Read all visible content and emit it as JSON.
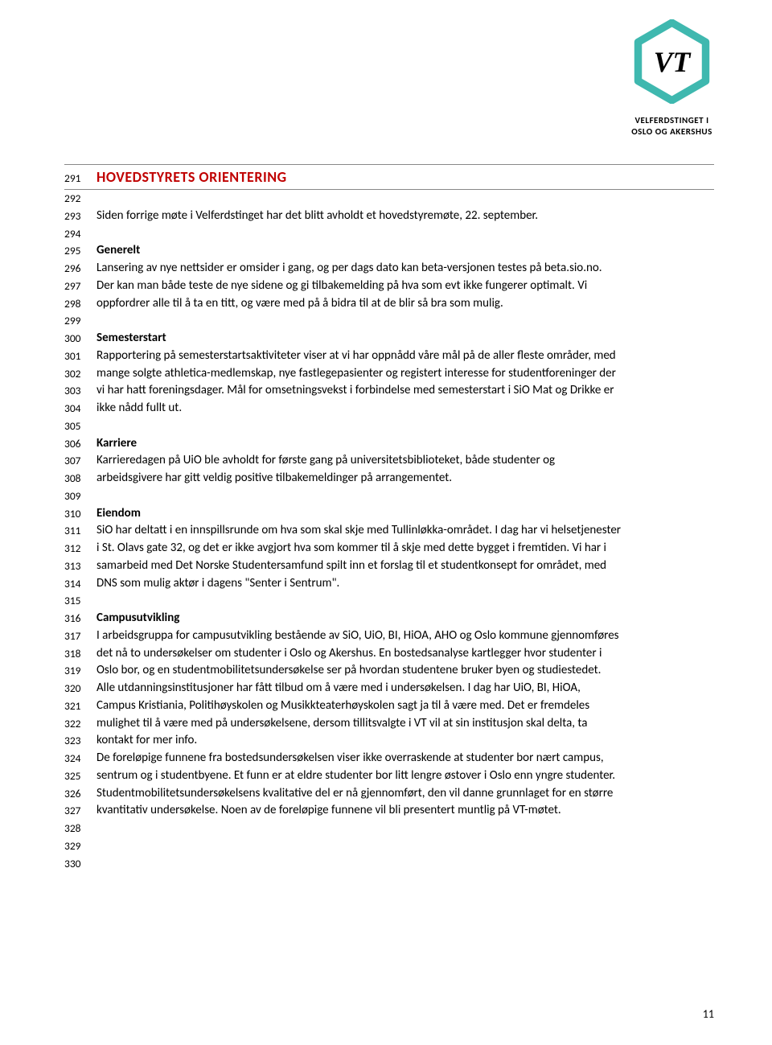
{
  "logo": {
    "line1": "VELFERDSTINGET I",
    "line2": "OSLO OG AKERSHUS",
    "hex_stroke": "#3fb8af",
    "vt_text": "VT"
  },
  "headline": {
    "color": "#c00000",
    "text": "HOVEDSTYRETS ORIENTERING"
  },
  "lines": [
    {
      "n": "291",
      "t": "HOVEDSTYRETS ORIENTERING",
      "headline": true
    },
    {
      "n": "292",
      "t": ""
    },
    {
      "n": "293",
      "t": "Siden forrige møte i Velferdstinget har det blitt avholdt et hovedstyremøte, 22. september."
    },
    {
      "n": "294",
      "t": ""
    },
    {
      "n": "295",
      "t": "Generelt",
      "bold": true
    },
    {
      "n": "296",
      "t": "Lansering av nye nettsider er omsider i gang, og per dags dato kan beta-versjonen testes på beta.sio.no."
    },
    {
      "n": "297",
      "t": "Der kan man både teste de nye sidene og gi tilbakemelding på hva som evt ikke fungerer optimalt. Vi"
    },
    {
      "n": "298",
      "t": "oppfordrer alle til å ta en titt, og være med på å bidra til at de blir så bra som mulig."
    },
    {
      "n": "299",
      "t": ""
    },
    {
      "n": "300",
      "t": "Semesterstart",
      "bold": true
    },
    {
      "n": "301",
      "t": "Rapportering på semesterstartsaktiviteter viser at vi har oppnådd våre mål på de aller fleste områder, med"
    },
    {
      "n": "302",
      "t": "mange solgte athletica-medlemskap, nye fastlegepasienter og registert interesse for studentforeninger der"
    },
    {
      "n": "303",
      "t": "vi har hatt foreningsdager. Mål for omsetningsvekst i forbindelse med semesterstart i SiO Mat og Drikke er"
    },
    {
      "n": "304",
      "t": "ikke nådd fullt ut."
    },
    {
      "n": "305",
      "t": ""
    },
    {
      "n": "306",
      "t": "Karriere",
      "bold": true
    },
    {
      "n": "307",
      "t": "Karrieredagen på UiO ble avholdt for første gang på universitetsbiblioteket, både studenter og"
    },
    {
      "n": "308",
      "t": "arbeidsgivere har gitt veldig positive tilbakemeldinger på arrangementet."
    },
    {
      "n": "309",
      "t": ""
    },
    {
      "n": "310",
      "t": "Eiendom",
      "bold": true
    },
    {
      "n": "311",
      "t": "SiO har deltatt i en innspillsrunde om hva som skal skje med Tullinløkka-området. I dag har vi helsetjenester"
    },
    {
      "n": "312",
      "t": "i St. Olavs gate 32, og det er ikke avgjort hva som kommer til å skje med dette bygget i fremtiden. Vi har i"
    },
    {
      "n": "313",
      "t": "samarbeid med Det Norske Studentersamfund spilt inn et forslag til et studentkonsept for området, med"
    },
    {
      "n": "314",
      "t": "DNS som mulig aktør i dagens \"Senter i Sentrum\"."
    },
    {
      "n": "315",
      "t": ""
    },
    {
      "n": "316",
      "t": "Campusutvikling",
      "bold": true
    },
    {
      "n": "317",
      "t": "I arbeidsgruppa for campusutvikling bestående av SiO, UiO, BI, HiOA, AHO og Oslo kommune gjennomføres"
    },
    {
      "n": "318",
      "t": "det nå to undersøkelser om studenter i Oslo og Akershus. En bostedsanalyse kartlegger hvor studenter i"
    },
    {
      "n": "319",
      "t": "Oslo bor, og en studentmobilitetsundersøkelse ser på  hvordan studentene bruker byen og studiestedet."
    },
    {
      "n": "320",
      "t": "Alle utdanningsinstitusjoner har fått tilbud om å være med i undersøkelsen. I dag har UiO, BI, HiOA,"
    },
    {
      "n": "321",
      "t": "Campus Kristiania, Politihøyskolen og Musikkteaterhøyskolen sagt ja til å være med. Det er fremdeles"
    },
    {
      "n": "322",
      "t": "mulighet til å være med på undersøkelsene, dersom tillitsvalgte i VT vil at sin institusjon skal delta, ta"
    },
    {
      "n": "323",
      "t": "kontakt for mer info."
    },
    {
      "n": "324",
      "t": "De foreløpige funnene fra bostedsundersøkelsen viser ikke overraskende at studenter bor nært campus,"
    },
    {
      "n": "325",
      "t": "sentrum og i studentbyene. Et funn er at eldre studenter bor litt lengre østover i Oslo enn yngre studenter."
    },
    {
      "n": "326",
      "t": "Studentmobilitetsundersøkelsens kvalitative del er nå gjennomført, den vil danne grunnlaget for en større"
    },
    {
      "n": "327",
      "t": "kvantitativ undersøkelse. Noen av de foreløpige funnene vil bli presentert muntlig på VT-møtet."
    },
    {
      "n": "328",
      "t": ""
    },
    {
      "n": "329",
      "t": ""
    },
    {
      "n": "330",
      "t": ""
    }
  ],
  "page_number": "11"
}
